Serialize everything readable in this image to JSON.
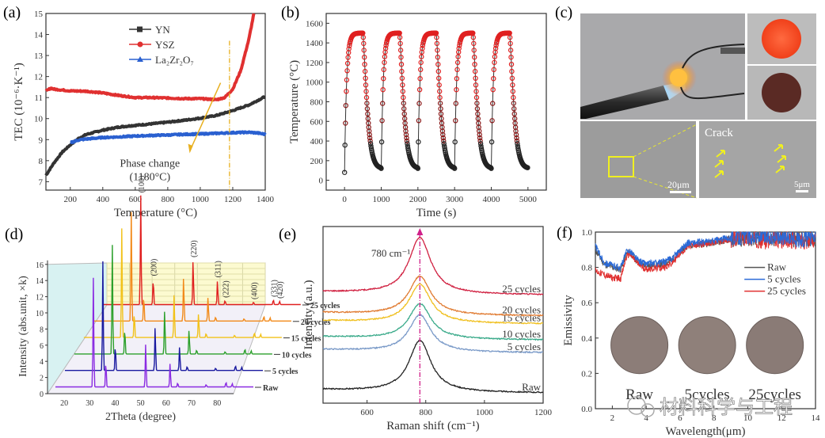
{
  "chart_data": [
    {
      "panel": "(a)",
      "type": "line",
      "xlabel": "Temperature (°C)",
      "ylabel": "TEC (10⁻⁶·K⁻¹)",
      "xlim": [
        50,
        1400
      ],
      "ylim": [
        6.6,
        15
      ],
      "xticks": [
        200,
        400,
        600,
        800,
        1000,
        1200,
        1400
      ],
      "yticks": [
        7,
        8,
        9,
        10,
        11,
        12,
        13,
        14,
        15
      ],
      "legend_position": "top-center",
      "annotation": {
        "text_line1": "Phase change",
        "text_line2": "(1180°C)",
        "x_marker": 1180,
        "marker_color": "#e8b020"
      },
      "series": [
        {
          "name": "YN",
          "color": "#333333",
          "marker": "square",
          "x": [
            50,
            100,
            150,
            200,
            250,
            300,
            400,
            500,
            600,
            700,
            800,
            900,
            1000,
            1100,
            1200,
            1300,
            1400
          ],
          "y": [
            7.3,
            7.9,
            8.4,
            8.75,
            9.05,
            9.25,
            9.45,
            9.6,
            9.68,
            9.75,
            9.83,
            9.92,
            10.02,
            10.15,
            10.38,
            10.65,
            11.05
          ]
        },
        {
          "name": "YSZ",
          "color": "#e03030",
          "marker": "circle",
          "x": [
            50,
            80,
            100,
            200,
            300,
            400,
            500,
            600,
            700,
            800,
            900,
            1000,
            1100,
            1150,
            1200,
            1250,
            1300,
            1330
          ],
          "y": [
            11.3,
            11.45,
            11.4,
            11.32,
            11.3,
            11.22,
            11.1,
            11.0,
            11.0,
            10.98,
            10.95,
            10.95,
            10.9,
            11.0,
            11.4,
            12.3,
            13.8,
            15.0
          ]
        },
        {
          "name": "La₂Zr₂O₇",
          "color": "#2a60d0",
          "marker": "triangle",
          "x": [
            200,
            250,
            300,
            400,
            500,
            600,
            700,
            800,
            900,
            1000,
            1100,
            1200,
            1300,
            1350,
            1400
          ],
          "y": [
            8.85,
            8.98,
            9.03,
            9.1,
            9.13,
            9.17,
            9.2,
            9.22,
            9.25,
            9.27,
            9.3,
            9.33,
            9.35,
            9.32,
            9.25
          ]
        }
      ]
    },
    {
      "panel": "(b)",
      "type": "scatter",
      "xlabel": "Time (s)",
      "ylabel": "Temperature (°C)",
      "xlim": [
        -500,
        5500
      ],
      "ylim": [
        -100,
        1700
      ],
      "xticks": [
        0,
        1000,
        2000,
        3000,
        4000,
        5000
      ],
      "yticks": [
        0,
        200,
        400,
        600,
        800,
        1000,
        1200,
        1400,
        1600
      ],
      "cycles": 5,
      "cycle_period_s": 1000,
      "hold_temperature": 1500,
      "hot_duration_s": 500,
      "min_temperature": 120,
      "start_temperature": 80,
      "color_hot": "#e02020",
      "color_cold": "#222222"
    },
    {
      "panel": "(d)",
      "type": "line",
      "xlabel": "2Theta (degree)",
      "ylabel": "Intensity (abs.unit, ×k)",
      "xlim": [
        15,
        88
      ],
      "ylim": [
        0,
        17
      ],
      "xticks": [
        20,
        30,
        40,
        50,
        60,
        70,
        80
      ],
      "yticks": [
        0,
        2,
        4,
        6,
        8,
        10,
        12,
        14,
        16
      ],
      "peaks": [
        {
          "hkl": "(100)",
          "two_theta": 29.0,
          "intensity": 13.5
        },
        {
          "hkl": "(200)",
          "two_theta": 33.6,
          "intensity": 3.2
        },
        {
          "hkl": "(220)",
          "two_theta": 48.3,
          "intensity": 5.5
        },
        {
          "hkl": "(311)",
          "two_theta": 57.3,
          "intensity": 3.0
        },
        {
          "hkl": "(222)",
          "two_theta": 60.1,
          "intensity": 0.5
        },
        {
          "hkl": "(400)",
          "two_theta": 70.6,
          "intensity": 0.3
        },
        {
          "hkl": "(331)",
          "two_theta": 77.9,
          "intensity": 0.6
        },
        {
          "hkl": "(420)",
          "two_theta": 80.2,
          "intensity": 0.4
        }
      ],
      "series": [
        {
          "name": "Raw",
          "color": "#8a2be2"
        },
        {
          "name": "5 cycles",
          "color": "#1a1aa0"
        },
        {
          "name": "10 cycles",
          "color": "#2ca02c"
        },
        {
          "name": "15 cycles",
          "color": "#f2c21a"
        },
        {
          "name": "20 cycles",
          "color": "#f28a1a"
        },
        {
          "name": "25 cycles",
          "color": "#e02020"
        }
      ]
    },
    {
      "panel": "(e)",
      "type": "line",
      "xlabel": "Raman shift (cm⁻¹)",
      "ylabel": "Intensity (a.u.)",
      "xlim": [
        450,
        1200
      ],
      "xticks": [
        600,
        800,
        1000,
        1200
      ],
      "annotation": {
        "text": "780 cm⁻¹",
        "x": 780,
        "color": "#d0208a"
      },
      "peak_center": 780,
      "series": [
        {
          "name": "Raw",
          "color": "#222222",
          "baseline": 0.0,
          "peak": 1.6
        },
        {
          "name": "5 cycles",
          "color": "#7a9ac8",
          "baseline": 1.25,
          "peak": 1.15
        },
        {
          "name": "10 cycles",
          "color": "#3aaa8a",
          "baseline": 1.65,
          "peak": 1.1
        },
        {
          "name": "15 cycles",
          "color": "#f0c020",
          "baseline": 2.15,
          "peak": 1.2
        },
        {
          "name": "20 cycles",
          "color": "#e07a30",
          "baseline": 2.4,
          "peak": 1.2
        },
        {
          "name": "25 cycles",
          "color": "#d02040",
          "baseline": 3.05,
          "peak": 1.75
        }
      ]
    },
    {
      "panel": "(f)",
      "type": "line",
      "xlabel": "Wavelength(μm)",
      "ylabel": "Emissivity",
      "xlim": [
        1,
        14
      ],
      "ylim": [
        0,
        1.0
      ],
      "xticks": [
        2,
        4,
        6,
        8,
        10,
        12,
        14
      ],
      "yticks": [
        0.0,
        0.2,
        0.4,
        0.6,
        0.8,
        1.0
      ],
      "legend_position": "top-right",
      "series": [
        {
          "name": "Raw",
          "color": "#555555",
          "x": [
            1,
            1.5,
            2,
            2.5,
            2.8,
            3,
            3.5,
            4,
            5,
            5.5,
            6,
            6.5,
            7,
            8,
            9,
            10,
            11,
            12,
            13,
            14
          ],
          "y": [
            0.9,
            0.82,
            0.8,
            0.79,
            0.87,
            0.89,
            0.83,
            0.81,
            0.82,
            0.84,
            0.89,
            0.93,
            0.93,
            0.94,
            0.96,
            0.97,
            0.96,
            0.97,
            0.96,
            0.97
          ]
        },
        {
          "name": "5 cycles",
          "color": "#2a6ad8",
          "x": [
            1,
            1.5,
            2,
            2.5,
            2.8,
            3,
            3.5,
            4,
            5,
            5.5,
            6,
            6.5,
            7,
            8,
            9,
            10,
            11,
            12,
            13,
            14
          ],
          "y": [
            0.92,
            0.83,
            0.81,
            0.8,
            0.88,
            0.9,
            0.84,
            0.82,
            0.83,
            0.85,
            0.9,
            0.94,
            0.94,
            0.95,
            0.97,
            0.98,
            0.97,
            0.98,
            0.96,
            0.97
          ]
        },
        {
          "name": "25 cycles",
          "color": "#e03030",
          "x": [
            1,
            1.5,
            2,
            2.5,
            2.8,
            3,
            3.5,
            4,
            5,
            5.5,
            6,
            6.5,
            7,
            8,
            9,
            10,
            11,
            12,
            13,
            14
          ],
          "y": [
            0.78,
            0.76,
            0.74,
            0.74,
            0.85,
            0.88,
            0.82,
            0.79,
            0.8,
            0.82,
            0.88,
            0.92,
            0.93,
            0.94,
            0.96,
            0.97,
            0.95,
            0.96,
            0.95,
            0.96
          ]
        }
      ],
      "inset_sample_labels": [
        "Raw",
        "5cycles",
        "25cycles"
      ]
    }
  ],
  "panels": {
    "a": "(a)",
    "b": "(b)",
    "c": "(c)",
    "d": "(d)",
    "e": "(e)",
    "f": "(f)"
  },
  "photo_panel": {
    "sem_left_scale": "20μm",
    "sem_right_scale": "5μm",
    "sem_right_label": "Crack"
  },
  "watermark": "材料科学与工程"
}
